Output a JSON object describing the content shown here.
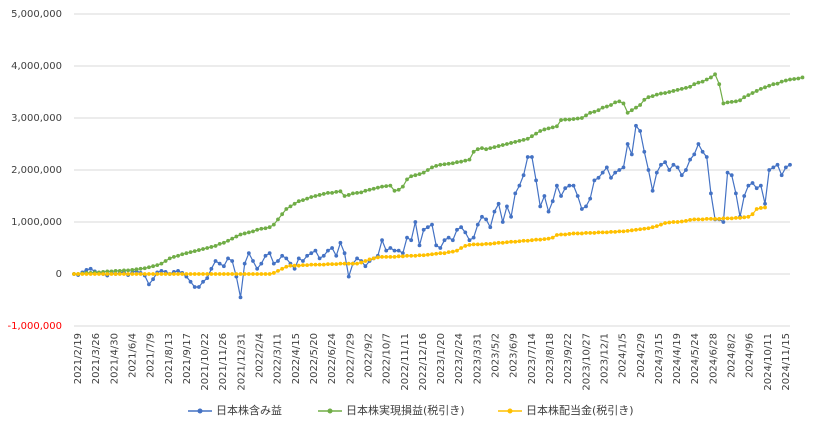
{
  "chart_data": {
    "type": "line",
    "xlabel": "",
    "ylabel": "",
    "ylim": [
      -1000000,
      5000000
    ],
    "y_ticks": [
      5000000,
      4000000,
      3000000,
      2000000,
      1000000,
      0,
      -1000000
    ],
    "y_tick_labels": [
      "5,000,000",
      "4,000,000",
      "3,000,000",
      "2,000,000",
      "1,000,000",
      "0",
      "-1,000,000"
    ],
    "negative_tick_color": "#ff0000",
    "grid": true,
    "legend_position": "bottom",
    "x_tick_labels": [
      "2021/2/19",
      "2021/3/26",
      "2021/4/30",
      "2021/6/4",
      "2021/7/9",
      "2021/8/13",
      "2021/9/17",
      "2021/10/22",
      "2021/11/26",
      "2021/12/31",
      "2022/2/4",
      "2022/3/11",
      "2022/4/15",
      "2022/5/20",
      "2022/6/24",
      "2022/7/29",
      "2022/9/2",
      "2022/10/7",
      "2022/11/11",
      "2022/12/16",
      "2023/1/20",
      "2023/2/24",
      "2023/3/31",
      "2023/5/2",
      "2023/6/9",
      "2023/7/14",
      "2023/8/18",
      "2023/9/22",
      "2023/10/27",
      "2023/12/1",
      "2024/1/5",
      "2024/2/9",
      "2024/3/15",
      "2024/4/19",
      "2024/5/24",
      "2024/6/28",
      "2024/8/2",
      "2024/9/6",
      "2024/10/11",
      "2024/11/15"
    ],
    "series": [
      {
        "name": "日本株含み益",
        "color": "#4472c4",
        "values": [
          0,
          -20000,
          30000,
          80000,
          100000,
          50000,
          20000,
          0,
          -30000,
          30000,
          0,
          20000,
          40000,
          -20000,
          30000,
          60000,
          20000,
          -30000,
          -200000,
          -100000,
          30000,
          60000,
          40000,
          0,
          40000,
          60000,
          20000,
          -50000,
          -150000,
          -250000,
          -250000,
          -150000,
          -80000,
          100000,
          250000,
          200000,
          150000,
          300000,
          250000,
          -50000,
          -450000,
          200000,
          400000,
          250000,
          100000,
          200000,
          350000,
          400000,
          200000,
          250000,
          350000,
          300000,
          200000,
          100000,
          300000,
          250000,
          350000,
          400000,
          450000,
          300000,
          350000,
          450000,
          500000,
          350000,
          600000,
          400000,
          -50000,
          200000,
          300000,
          250000,
          150000,
          250000,
          300000,
          350000,
          650000,
          450000,
          500000,
          450000,
          450000,
          400000,
          700000,
          650000,
          1000000,
          550000,
          850000,
          900000,
          950000,
          550000,
          500000,
          650000,
          700000,
          650000,
          850000,
          900000,
          800000,
          650000,
          700000,
          950000,
          1100000,
          1050000,
          900000,
          1200000,
          1350000,
          1000000,
          1300000,
          1100000,
          1550000,
          1700000,
          1900000,
          2250000,
          2250000,
          1800000,
          1300000,
          1500000,
          1200000,
          1400000,
          1700000,
          1500000,
          1650000,
          1700000,
          1700000,
          1500000,
          1250000,
          1300000,
          1450000,
          1800000,
          1850000,
          1950000,
          2050000,
          1850000,
          1950000,
          2000000,
          2050000,
          2500000,
          2300000,
          2850000,
          2750000,
          2350000,
          2000000,
          1600000,
          1950000,
          2100000,
          2150000,
          2000000,
          2100000,
          2050000,
          1900000,
          2000000,
          2200000,
          2300000,
          2500000,
          2350000,
          2250000,
          1550000,
          1050000,
          1050000,
          1000000,
          1950000,
          1900000,
          1550000,
          1100000,
          1500000,
          1700000,
          1750000,
          1650000,
          1700000,
          1350000,
          2000000,
          2050000,
          2100000,
          1900000,
          2050000,
          2100000
        ]
      },
      {
        "name": "日本株実現損益(税引き)",
        "color": "#70ad47",
        "values": [
          0,
          0,
          10000,
          20000,
          20000,
          30000,
          30000,
          40000,
          50000,
          50000,
          60000,
          60000,
          70000,
          70000,
          80000,
          90000,
          100000,
          110000,
          130000,
          150000,
          170000,
          200000,
          250000,
          300000,
          330000,
          350000,
          380000,
          400000,
          420000,
          440000,
          460000,
          480000,
          500000,
          520000,
          540000,
          580000,
          600000,
          640000,
          680000,
          720000,
          760000,
          780000,
          800000,
          820000,
          850000,
          870000,
          880000,
          900000,
          950000,
          1050000,
          1150000,
          1250000,
          1300000,
          1350000,
          1400000,
          1420000,
          1450000,
          1480000,
          1500000,
          1520000,
          1540000,
          1560000,
          1560000,
          1580000,
          1590000,
          1500000,
          1520000,
          1550000,
          1560000,
          1570000,
          1600000,
          1620000,
          1640000,
          1660000,
          1680000,
          1690000,
          1700000,
          1600000,
          1620000,
          1680000,
          1820000,
          1880000,
          1900000,
          1920000,
          1950000,
          2000000,
          2050000,
          2080000,
          2100000,
          2110000,
          2120000,
          2130000,
          2150000,
          2160000,
          2180000,
          2200000,
          2350000,
          2400000,
          2420000,
          2400000,
          2420000,
          2440000,
          2460000,
          2480000,
          2500000,
          2520000,
          2540000,
          2560000,
          2580000,
          2600000,
          2650000,
          2700000,
          2750000,
          2780000,
          2800000,
          2820000,
          2840000,
          2960000,
          2970000,
          2970000,
          2980000,
          2990000,
          3000000,
          3050000,
          3100000,
          3120000,
          3150000,
          3200000,
          3220000,
          3250000,
          3300000,
          3320000,
          3280000,
          3100000,
          3150000,
          3200000,
          3250000,
          3350000,
          3400000,
          3420000,
          3450000,
          3470000,
          3480000,
          3500000,
          3520000,
          3540000,
          3560000,
          3580000,
          3600000,
          3650000,
          3680000,
          3700000,
          3740000,
          3780000,
          3840000,
          3650000,
          3280000,
          3300000,
          3310000,
          3320000,
          3340000,
          3400000,
          3440000,
          3480000,
          3520000,
          3560000,
          3590000,
          3620000,
          3650000,
          3660000,
          3700000,
          3720000,
          3740000,
          3750000,
          3760000,
          3780000
        ]
      },
      {
        "name": "日本株配当金(税引き)",
        "color": "#ffc000",
        "values": [
          0,
          0,
          0,
          0,
          0,
          0,
          0,
          0,
          0,
          0,
          0,
          0,
          0,
          0,
          0,
          0,
          0,
          0,
          0,
          0,
          0,
          0,
          0,
          0,
          0,
          0,
          0,
          0,
          0,
          0,
          0,
          0,
          0,
          0,
          0,
          0,
          0,
          0,
          0,
          0,
          0,
          0,
          0,
          0,
          0,
          0,
          0,
          0,
          20000,
          60000,
          100000,
          140000,
          160000,
          160000,
          160000,
          170000,
          170000,
          180000,
          180000,
          180000,
          180000,
          190000,
          190000,
          190000,
          200000,
          200000,
          200000,
          200000,
          200000,
          220000,
          250000,
          280000,
          300000,
          320000,
          330000,
          330000,
          330000,
          330000,
          340000,
          340000,
          350000,
          350000,
          350000,
          360000,
          360000,
          370000,
          380000,
          390000,
          400000,
          400000,
          420000,
          430000,
          450000,
          500000,
          540000,
          560000,
          570000,
          570000,
          570000,
          580000,
          580000,
          590000,
          600000,
          600000,
          610000,
          620000,
          620000,
          630000,
          640000,
          640000,
          650000,
          660000,
          660000,
          670000,
          680000,
          700000,
          750000,
          760000,
          760000,
          770000,
          780000,
          780000,
          780000,
          790000,
          790000,
          790000,
          800000,
          800000,
          800000,
          810000,
          810000,
          820000,
          820000,
          830000,
          840000,
          850000,
          860000,
          870000,
          880000,
          900000,
          920000,
          950000,
          980000,
          990000,
          1000000,
          1000000,
          1010000,
          1020000,
          1040000,
          1050000,
          1050000,
          1050000,
          1060000,
          1060000,
          1060000,
          1060000,
          1070000,
          1070000,
          1070000,
          1080000,
          1080000,
          1090000,
          1100000,
          1150000,
          1250000,
          1270000,
          1280000
        ]
      }
    ]
  }
}
